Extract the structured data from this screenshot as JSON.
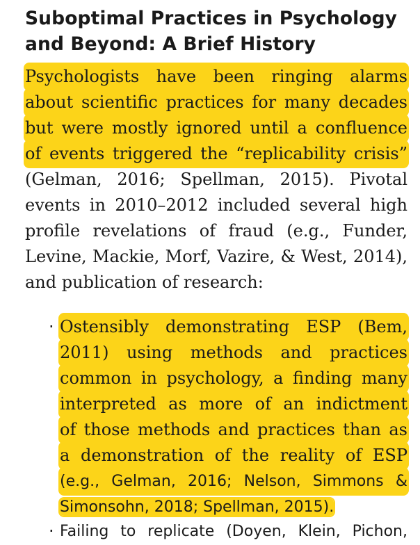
{
  "heading": {
    "line1": "Suboptimal Practices in Psychology",
    "line2": "and Beyond: A Brief History"
  },
  "paragraph": {
    "lines": [
      "Psychologists have been ringing alarms",
      "about scientific practices for many decades",
      "but were mostly ignored until a confluence",
      "of events triggered the “replicability crisis”",
      "(Gelman, 2016; Spellman, 2015). Pivotal",
      "events in 2010–2012 included several high",
      "profile revelations of fraud (e.g., Funder,",
      "Levine, Mackie, Morf, Vazire, & West, 2014),",
      "and publication of research:"
    ]
  },
  "bullets": {
    "marker": "·",
    "item1_lines": [
      "Ostensibly demonstrating ESP (Bem,",
      "2011) using methods and practices",
      "common in psychology, a finding many",
      "interpreted as more of an indictment",
      "of those methods and practices than as",
      "a demonstration of the reality of ESP",
      "(e.g., Gelman, 2016; Nelson, Simmons &",
      "Simonsohn, 2018; Spellman, 2015)."
    ],
    "item2_lines": [
      "Failing to replicate (Doyen, Klein, Pichon,"
    ]
  },
  "colors": {
    "highlight": "#fcd419",
    "text": "#1a1a1a"
  }
}
